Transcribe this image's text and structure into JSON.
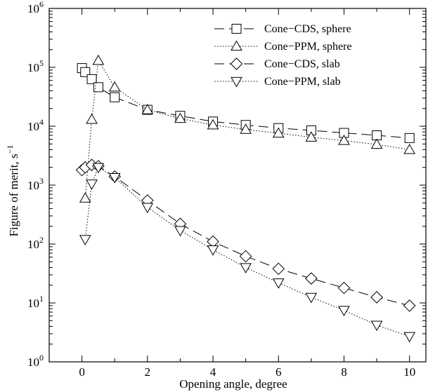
{
  "chart_data": {
    "type": "line",
    "title": "",
    "xlabel": "Opening angle, degree",
    "ylabel": "Figure of merit, s",
    "ylabel_superscript": "−1",
    "xlim": [
      -1,
      10.5
    ],
    "ylim": [
      1,
      1000000
    ],
    "yscale": "log",
    "grid": false,
    "legend_position": "top-right",
    "x_ticks": [
      0,
      2,
      4,
      6,
      8,
      10
    ],
    "x_tick_labels": [
      "0",
      "2",
      "4",
      "6",
      "8",
      "10"
    ],
    "y_ticks": [
      1,
      10,
      100,
      1000,
      10000,
      100000,
      1000000
    ],
    "y_tick_bases": [
      "10",
      "10",
      "10",
      "10",
      "10",
      "10",
      "10"
    ],
    "y_tick_exponents": [
      "0",
      "1",
      "2",
      "3",
      "4",
      "5",
      "6"
    ],
    "series": [
      {
        "name": "Cone−CDS, sphere",
        "marker": "square",
        "dash": "dashed",
        "color": "#000000",
        "x": [
          0,
          0.1,
          0.3,
          0.5,
          1,
          2,
          3,
          4,
          5,
          6,
          7,
          8,
          9,
          10
        ],
        "y": [
          97000,
          83000,
          63000,
          46000,
          31000,
          19000,
          15000,
          12000,
          10500,
          9300,
          8500,
          7700,
          7000,
          6300
        ]
      },
      {
        "name": "Cone−PPM, sphere",
        "marker": "triangle-up",
        "dash": "dotted",
        "color": "#000000",
        "x": [
          0.1,
          0.3,
          0.5,
          1,
          2,
          3,
          4,
          5,
          6,
          7,
          8,
          9,
          10
        ],
        "y": [
          600,
          13000,
          130000,
          46000,
          19000,
          13500,
          10500,
          8800,
          7600,
          6500,
          5700,
          4900,
          4000
        ]
      },
      {
        "name": "Cone−CDS, slab",
        "marker": "diamond",
        "dash": "dashed",
        "color": "#000000",
        "x": [
          0,
          0.1,
          0.3,
          0.5,
          1,
          2,
          3,
          4,
          5,
          6,
          7,
          8,
          9,
          10
        ],
        "y": [
          1800,
          2000,
          2200,
          2100,
          1400,
          550,
          220,
          110,
          62,
          38,
          26,
          18,
          12.5,
          9
        ]
      },
      {
        "name": "Cone−PPM, slab",
        "marker": "triangle-down",
        "dash": "dotted",
        "color": "#000000",
        "x": [
          0.1,
          0.3,
          0.5,
          1,
          2,
          3,
          4,
          5,
          6,
          7,
          8,
          9,
          10
        ],
        "y": [
          120,
          1050,
          2000,
          1350,
          420,
          170,
          80,
          40,
          22,
          12.5,
          7.5,
          4.2,
          2.7
        ]
      }
    ]
  }
}
